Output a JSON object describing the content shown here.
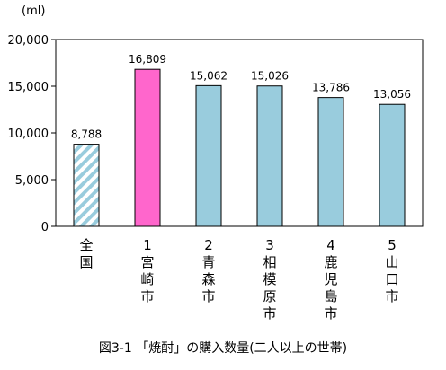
{
  "chart_data": {
    "type": "bar",
    "title": "",
    "caption": "図3-1 「焼酎」の購入数量(二人以上の世帯)",
    "unit": "(ml)",
    "xlabel": "",
    "ylabel": "",
    "ylim": [
      0,
      20000
    ],
    "y_ticks": [
      0,
      5000,
      10000,
      15000,
      20000
    ],
    "y_tick_labels": [
      "0",
      "5,000",
      "10,000",
      "15,000",
      "20,000"
    ],
    "grid": false,
    "legend": "none",
    "categories": [
      [
        "全",
        "国"
      ],
      [
        "1",
        "宮",
        "崎",
        "市"
      ],
      [
        "2",
        "青",
        "森",
        "市"
      ],
      [
        "3",
        "相",
        "模",
        "原",
        "市"
      ],
      [
        "4",
        "鹿",
        "児",
        "島",
        "市"
      ],
      [
        "5",
        "山",
        "口",
        "市"
      ]
    ],
    "values": [
      8788,
      16809,
      15062,
      15026,
      13786,
      13056
    ],
    "value_labels": [
      "8,788",
      "16,809",
      "15,062",
      "15,026",
      "13,786",
      "13,056"
    ],
    "bar_styles": [
      "hatched",
      "highlight",
      "normal",
      "normal",
      "normal",
      "normal"
    ],
    "colors": {
      "normal": "#99CCDD",
      "highlight": "#FF66CC",
      "hatch": "#99CCDD",
      "outline": "#000000"
    }
  }
}
